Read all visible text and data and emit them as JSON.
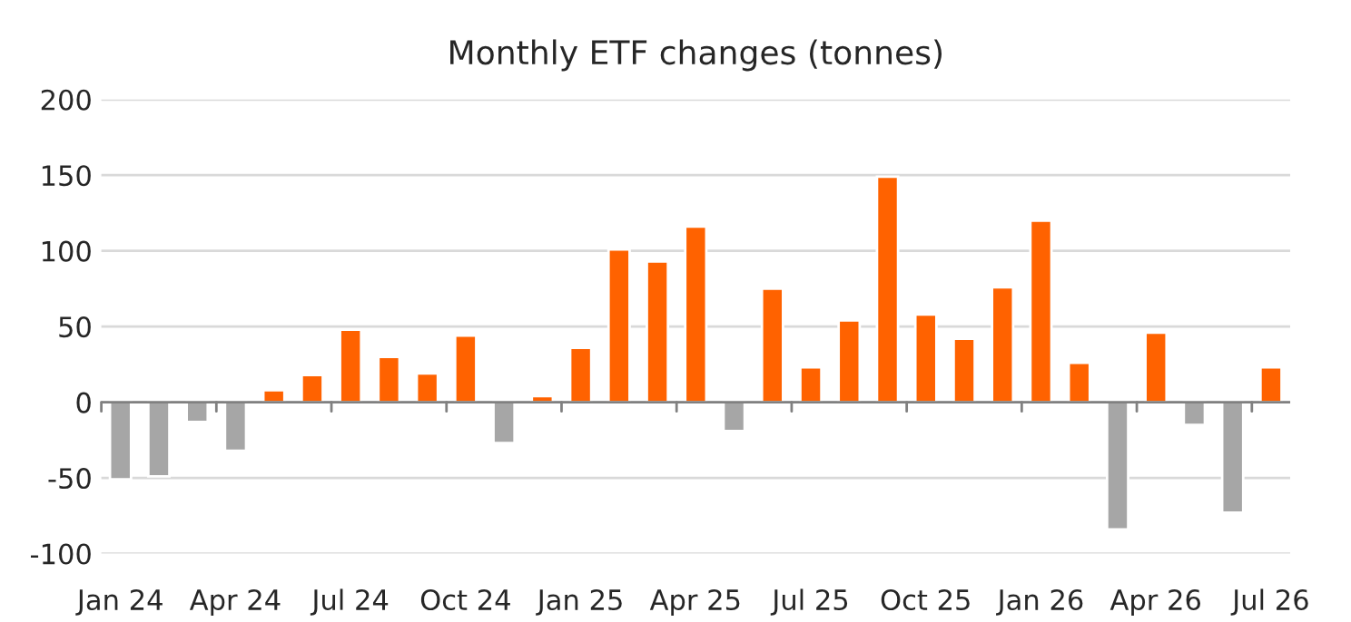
{
  "chart_data": {
    "type": "bar",
    "title": "Monthly ETF changes (tonnes)",
    "categories": [
      "Jan 24",
      null,
      null,
      "Apr 24",
      null,
      null,
      "Jul 24",
      null,
      null,
      "Oct 24",
      null,
      null,
      "Jan 25",
      null,
      null,
      "Apr 25",
      null,
      null,
      "Jul 25",
      null,
      null,
      "Oct 25",
      null,
      null,
      "Jan 26",
      null,
      null,
      "Apr 26",
      null,
      null,
      "Jul 26"
    ],
    "values": [
      -51,
      -49,
      -13,
      -32,
      8,
      18,
      48,
      30,
      19,
      44,
      -27,
      4,
      36,
      101,
      93,
      116,
      -19,
      75,
      23,
      54,
      149,
      58,
      42,
      76,
      120,
      26,
      -84,
      46,
      -15,
      -73,
      23
    ],
    "colors": [
      "#a6a6a6",
      "#a6a6a6",
      "#a6a6a6",
      "#a6a6a6",
      "#ff6200",
      "#ff6200",
      "#ff6200",
      "#ff6200",
      "#ff6200",
      "#ff6200",
      "#a6a6a6",
      "#ff6200",
      "#ff6200",
      "#ff6200",
      "#ff6200",
      "#ff6200",
      "#a6a6a6",
      "#ff6200",
      "#ff6200",
      "#ff6200",
      "#ff6200",
      "#ff6200",
      "#ff6200",
      "#ff6200",
      "#ff6200",
      "#ff6200",
      "#a6a6a6",
      "#ff6200",
      "#a6a6a6",
      "#a6a6a6",
      "#ff6200"
    ],
    "ylim": [
      -100,
      200
    ],
    "yticks": [
      -100,
      -50,
      0,
      50,
      100,
      150,
      200
    ],
    "grid": "y",
    "legend": false
  }
}
